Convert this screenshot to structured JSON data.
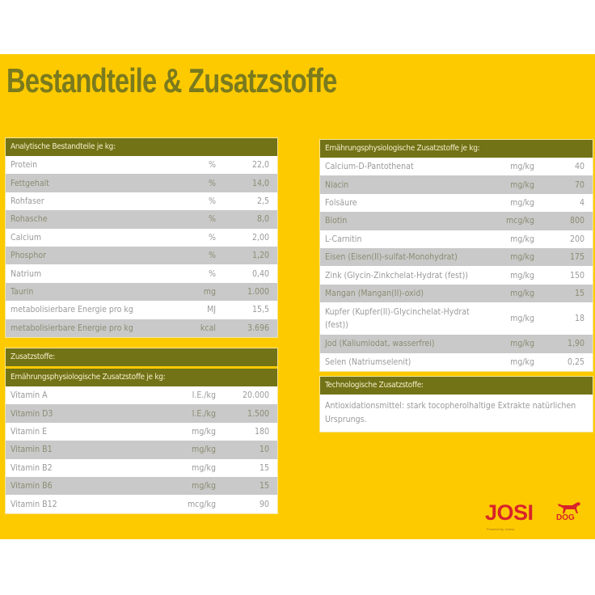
{
  "page": {
    "title": "Bestandteile & Zusatzstoffe",
    "colors": {
      "background": "#fdca00",
      "header": "#727216",
      "title": "#7a7a1e",
      "row_alt": "#c9c9c9",
      "logo": "#d8242a"
    }
  },
  "analytical": {
    "header": "Analytische Bestandteile je kg:",
    "rows": [
      {
        "name": "Protein",
        "unit": "%",
        "value": "22,0"
      },
      {
        "name": "Fettgehalt",
        "unit": "%",
        "value": "14,0"
      },
      {
        "name": "Rohfaser",
        "unit": "%",
        "value": "2,5"
      },
      {
        "name": "Rohasche",
        "unit": "%",
        "value": "8,0"
      },
      {
        "name": "Calcium",
        "unit": "%",
        "value": "2,00"
      },
      {
        "name": "Phosphor",
        "unit": "%",
        "value": "1,20"
      },
      {
        "name": "Natrium",
        "unit": "%",
        "value": "0,40"
      },
      {
        "name": "Taurin",
        "unit": "mg",
        "value": "1.000"
      },
      {
        "name": "metabolisierbare Energie pro kg",
        "unit": "MJ",
        "value": "15,5"
      },
      {
        "name": "metabolisierbare Energie pro kg",
        "unit": "kcal",
        "value": "3.696"
      }
    ]
  },
  "additives_left": {
    "header": "Zusatzstoffe:",
    "subheader": "Ernährungsphysiologische Zusatzstoffe je kg:",
    "rows": [
      {
        "name": "Vitamin A",
        "unit": "I.E./kg",
        "value": "20.000"
      },
      {
        "name": "Vitamin D3",
        "unit": "I.E./kg",
        "value": "1.500"
      },
      {
        "name": "Vitamin E",
        "unit": "mg/kg",
        "value": "180"
      },
      {
        "name": "Vitamin B1",
        "unit": "mg/kg",
        "value": "10"
      },
      {
        "name": "Vitamin B2",
        "unit": "mg/kg",
        "value": "15"
      },
      {
        "name": "Vitamin B6",
        "unit": "mg/kg",
        "value": "15"
      },
      {
        "name": "Vitamin B12",
        "unit": "mcg/kg",
        "value": "90"
      }
    ]
  },
  "additives_right": {
    "header": "Ernährungsphysiologische Zusatzstoffe je kg:",
    "rows": [
      {
        "name": "Calcium-D-Pantothenat",
        "unit": "mg/kg",
        "value": "40"
      },
      {
        "name": "Niacin",
        "unit": "mg/kg",
        "value": "70"
      },
      {
        "name": "Folsäure",
        "unit": "mg/kg",
        "value": "4"
      },
      {
        "name": "Biotin",
        "unit": "mcg/kg",
        "value": "800"
      },
      {
        "name": "L-Carnitin",
        "unit": "mg/kg",
        "value": "200"
      },
      {
        "name": "Eisen (Eisen(II)-sulfat-Monohydrat)",
        "unit": "mg/kg",
        "value": "175"
      },
      {
        "name": "Zink (Glycin-Zinkchelat-Hydrat (fest))",
        "unit": "mg/kg",
        "value": "150"
      },
      {
        "name": "Mangan (Mangan(II)-oxid)",
        "unit": "mg/kg",
        "value": "15"
      },
      {
        "name": "Kupfer (Kupfer(II)-Glycinchelat-Hydrat (fest))",
        "unit": "mg/kg",
        "value": "18"
      },
      {
        "name": "Jod (Kaliumiodat, wasserfrei)",
        "unit": "mg/kg",
        "value": "1,90"
      },
      {
        "name": "Selen (Natriumselenit)",
        "unit": "mg/kg",
        "value": "0,25"
      }
    ]
  },
  "technological": {
    "header": "Technologische Zusatzstoffe:",
    "text": "Antioxidationsmittel: stark tocopherolhaltige Extrakte natürlichen Ursprungs."
  },
  "logo": {
    "brand": "JOSI",
    "suffix": "DOG",
    "tagline": "Powered by Josera",
    "icon": "dog-icon"
  }
}
